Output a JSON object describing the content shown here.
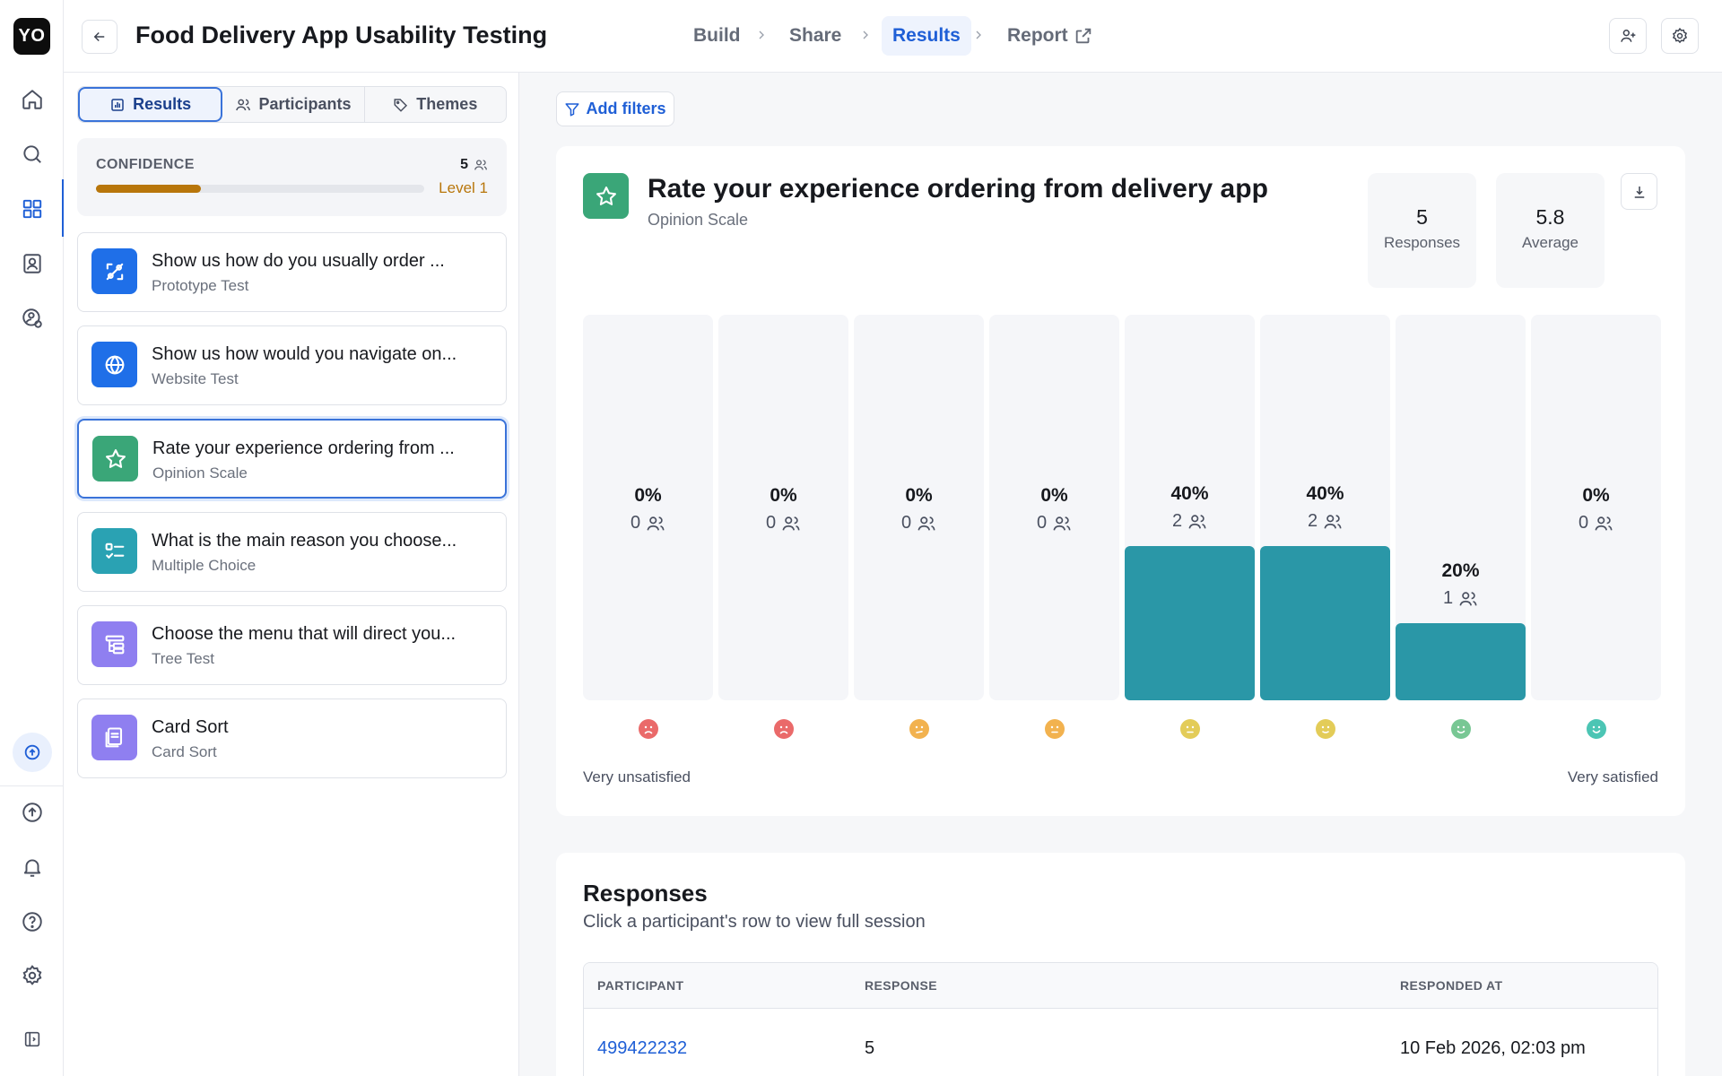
{
  "rail": {
    "logo": "YO",
    "top_icons": [
      "home-icon",
      "search-icon",
      "grid-icon",
      "contacts-icon",
      "user-settings-icon"
    ],
    "bottom_icons": [
      "upload-icon",
      "bell-icon",
      "help-icon",
      "settings-icon",
      "sidebar-toggle-icon"
    ],
    "upgrade_icon": "upgrade-icon"
  },
  "header": {
    "title": "Food Delivery App Usability Testing",
    "breadcrumbs": [
      "Build",
      "Share",
      "Results",
      "Report"
    ],
    "active_breadcrumb": "Results"
  },
  "left": {
    "tabs": [
      {
        "label": "Results",
        "icon": "chart-icon",
        "active": true
      },
      {
        "label": "Participants",
        "icon": "users-icon",
        "active": false
      },
      {
        "label": "Themes",
        "icon": "tag-icon",
        "active": false
      }
    ],
    "confidence": {
      "label": "CONFIDENCE",
      "count": "5",
      "level": "Level 1",
      "progress": 0.32
    },
    "questions": [
      {
        "title": "Show us how do you usually order ...",
        "type": "Prototype Test",
        "color": "#1f6fe8",
        "icon": "prototype-icon"
      },
      {
        "title": "Show us how would you navigate on...",
        "type": "Website Test",
        "color": "#1f6fe8",
        "icon": "globe-icon"
      },
      {
        "title": "Rate your experience ordering from ...",
        "type": "Opinion Scale",
        "color": "#3aa678",
        "icon": "star-icon",
        "active": true
      },
      {
        "title": "What is the main reason you choose...",
        "type": "Multiple Choice",
        "color": "#2aa2b3",
        "icon": "checklist-icon"
      },
      {
        "title": "Choose the menu that will direct you...",
        "type": "Tree Test",
        "color": "#8f7ff0",
        "icon": "tree-icon"
      },
      {
        "title": "Card Sort",
        "type": "Card Sort",
        "color": "#8f7ff0",
        "icon": "cards-icon"
      }
    ]
  },
  "main": {
    "filter_label": "Add filters",
    "question": {
      "title": "Rate your experience ordering from delivery app",
      "type": "Opinion Scale",
      "responses_value": "5",
      "responses_label": "Responses",
      "average_value": "5.8",
      "average_label": "Average"
    },
    "scale_left": "Very unsatisfied",
    "scale_right": "Very satisfied",
    "face_colors": [
      "#ea6a6a",
      "#ea6a6a",
      "#f2b24f",
      "#f2b24f",
      "#e3cc58",
      "#e3cc58",
      "#78c794",
      "#4cc5b4"
    ],
    "responses_section": {
      "title": "Responses",
      "subtitle": "Click a participant's row to view full session",
      "columns": [
        "PARTICIPANT",
        "RESPONSE",
        "RESPONDED AT"
      ],
      "rows": [
        {
          "participant": "499422232",
          "response": "5",
          "responded_at": "10 Feb 2026, 02:03 pm"
        }
      ]
    }
  },
  "chart_data": {
    "type": "bar",
    "categories": [
      "1",
      "2",
      "3",
      "4",
      "5",
      "6",
      "7",
      "8"
    ],
    "values": [
      0,
      0,
      0,
      0,
      40,
      40,
      20,
      0
    ],
    "counts": [
      0,
      0,
      0,
      0,
      2,
      2,
      1,
      0
    ],
    "labels": [
      "0%",
      "0%",
      "0%",
      "0%",
      "40%",
      "40%",
      "20%",
      "0%"
    ],
    "ylim": [
      0,
      100
    ],
    "xlabel": "",
    "ylabel": "",
    "grid": false
  }
}
